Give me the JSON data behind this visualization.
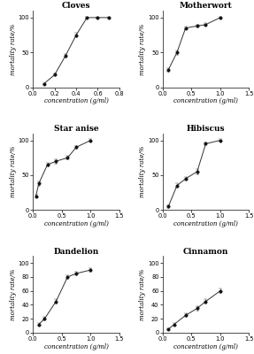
{
  "plots": [
    {
      "title": "Cloves",
      "x": [
        0.1,
        0.2,
        0.3,
        0.4,
        0.5,
        0.6,
        0.7
      ],
      "y": [
        5,
        18,
        45,
        75,
        100,
        100,
        100
      ],
      "yerr": [
        1.5,
        2,
        2.5,
        3,
        1,
        1,
        1
      ],
      "xlim": [
        0.0,
        0.8
      ],
      "xticks": [
        0.0,
        0.2,
        0.4,
        0.6,
        0.8
      ],
      "ylim": [
        0,
        110
      ],
      "yticks": [
        0,
        50,
        100
      ]
    },
    {
      "title": "Motherwort",
      "x": [
        0.1,
        0.25,
        0.4,
        0.6,
        0.75,
        1.0
      ],
      "y": [
        25,
        50,
        85,
        88,
        90,
        100
      ],
      "yerr": [
        2,
        3,
        2,
        2,
        2,
        1.5
      ],
      "xlim": [
        0.0,
        1.5
      ],
      "xticks": [
        0.0,
        0.5,
        1.0,
        1.5
      ],
      "ylim": [
        0,
        110
      ],
      "yticks": [
        0,
        50,
        100
      ]
    },
    {
      "title": "Star anise",
      "x": [
        0.05,
        0.1,
        0.25,
        0.4,
        0.6,
        0.75,
        1.0
      ],
      "y": [
        20,
        38,
        65,
        70,
        75,
        90,
        100
      ],
      "yerr": [
        2,
        3,
        3,
        3,
        2.5,
        2,
        1.5
      ],
      "xlim": [
        0.0,
        1.5
      ],
      "xticks": [
        0.0,
        0.5,
        1.0,
        1.5
      ],
      "ylim": [
        0,
        110
      ],
      "yticks": [
        0,
        50,
        100
      ]
    },
    {
      "title": "Hibiscus",
      "x": [
        0.1,
        0.25,
        0.4,
        0.6,
        0.75,
        1.0
      ],
      "y": [
        5,
        35,
        45,
        55,
        95,
        100
      ],
      "yerr": [
        1.5,
        3,
        3,
        4,
        2,
        1.5
      ],
      "xlim": [
        0.0,
        1.5
      ],
      "xticks": [
        0.0,
        0.5,
        1.0,
        1.5
      ],
      "ylim": [
        0,
        110
      ],
      "yticks": [
        0,
        50,
        100
      ]
    },
    {
      "title": "Dandelion",
      "x": [
        0.1,
        0.2,
        0.4,
        0.6,
        0.75,
        1.0
      ],
      "y": [
        12,
        20,
        45,
        80,
        85,
        90
      ],
      "yerr": [
        2,
        2.5,
        3,
        2.5,
        2.5,
        2.5
      ],
      "xlim": [
        0.0,
        1.5
      ],
      "xticks": [
        0.0,
        0.5,
        1.0,
        1.5
      ],
      "ylim": [
        0,
        110
      ],
      "yticks": [
        0,
        20,
        40,
        60,
        80,
        100
      ]
    },
    {
      "title": "Cinnamon",
      "x": [
        0.1,
        0.2,
        0.4,
        0.6,
        0.75,
        1.0
      ],
      "y": [
        5,
        12,
        25,
        35,
        45,
        60
      ],
      "yerr": [
        1.5,
        2,
        2.5,
        3,
        3,
        3.5
      ],
      "xlim": [
        0.0,
        1.5
      ],
      "xticks": [
        0.0,
        0.5,
        1.0,
        1.5
      ],
      "ylim": [
        0,
        110
      ],
      "yticks": [
        0,
        20,
        40,
        60,
        80,
        100
      ]
    }
  ],
  "xlabel": "concentration (g/ml)",
  "ylabel": "mortality rate/%",
  "line_color": "#333333",
  "marker": "o",
  "marker_size": 2.5,
  "marker_color": "#111111",
  "bg_color": "#ffffff",
  "title_fontsize": 6.5,
  "label_fontsize": 5.0,
  "tick_fontsize": 4.8
}
